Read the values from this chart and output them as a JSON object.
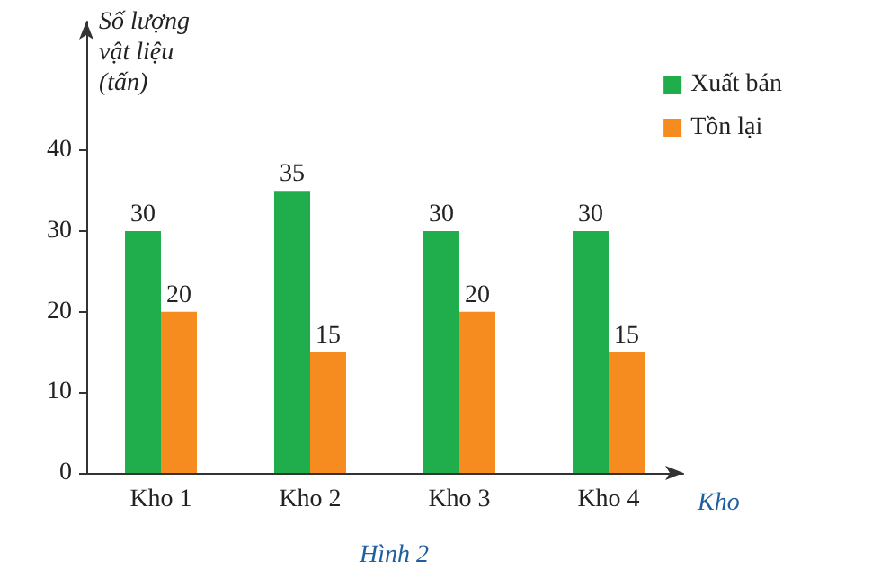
{
  "chart_data": {
    "type": "bar",
    "ylabel": "Số lượng vật liệu (tấn)",
    "xlabel": "Kho",
    "annotations": [
      "Hình 2"
    ],
    "categories": [
      "Kho 1",
      "Kho 2",
      "Kho 3",
      "Kho 4"
    ],
    "series": [
      {
        "name": "Xuất bán",
        "color": "#1fae4b",
        "values": [
          30,
          35,
          30,
          30
        ]
      },
      {
        "name": "Tồn lại",
        "color": "#f68b1f",
        "values": [
          20,
          15,
          20,
          15
        ]
      }
    ],
    "ylim": [
      0,
      56
    ],
    "yticks": [
      0,
      10,
      20,
      30,
      40
    ],
    "grid": false,
    "legend": "top right",
    "data_labels": true
  }
}
